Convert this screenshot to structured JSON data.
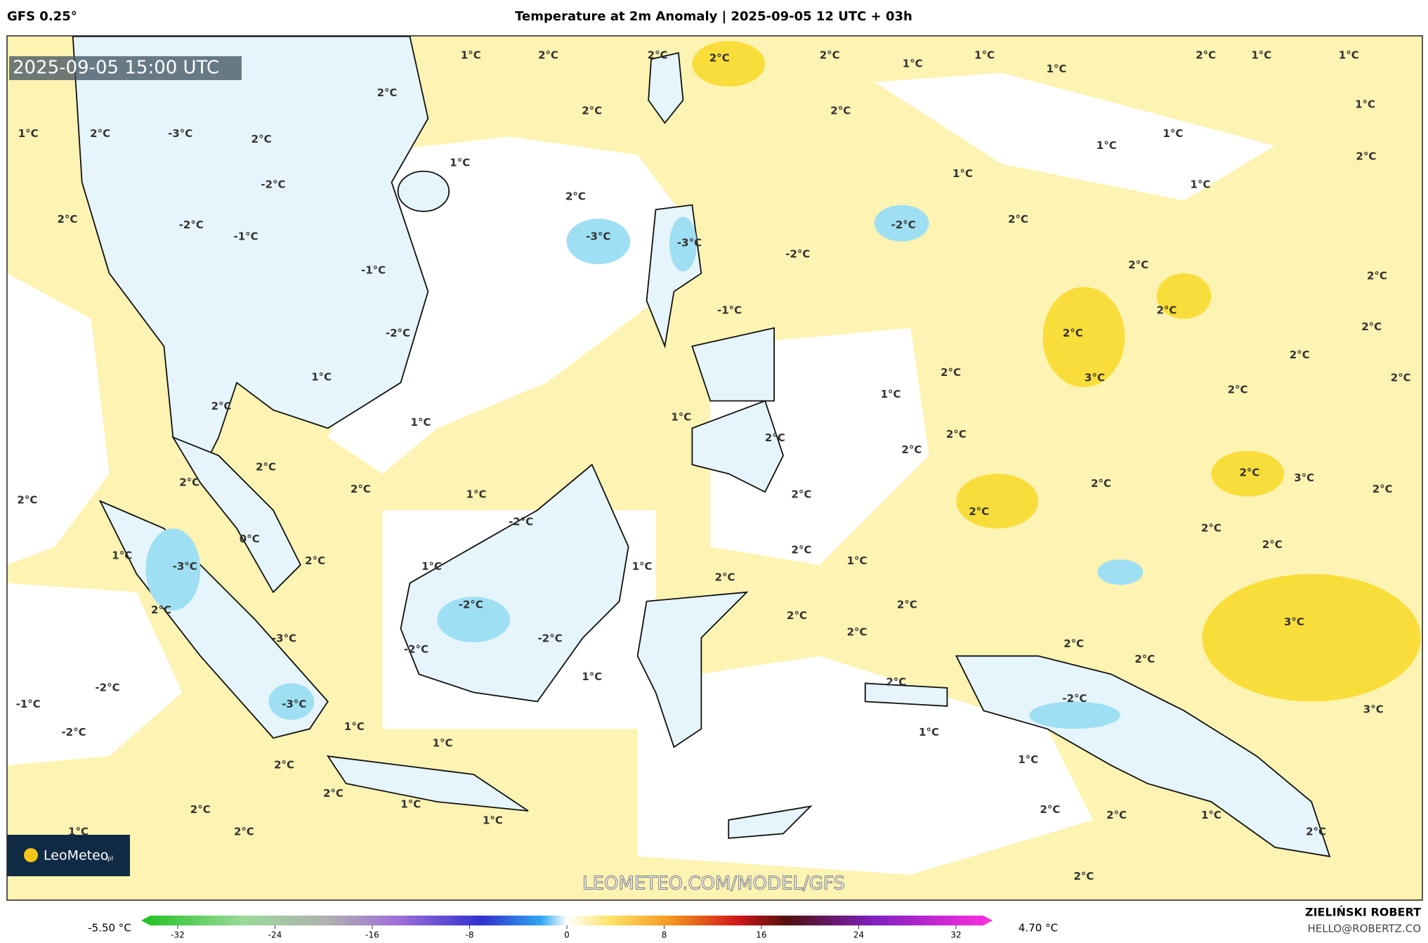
{
  "header": {
    "model": "GFS 0.25°",
    "title": "Temperature at 2m Anomaly | 2025-09-05 12 UTC + 03h"
  },
  "map": {
    "timestamp": "2025-09-05 15:00 UTC",
    "watermark": "LEOMETEO.COM/MODEL/GFS",
    "logo": {
      "name": "LeoMeteo",
      "suffix": ".pl"
    },
    "contour_labels": [
      "1°C",
      "2°C",
      "2°C",
      "2°C",
      "2°C",
      "1°C",
      "1°C",
      "1°C",
      "2°C",
      "1°C",
      "1°C",
      "2°C",
      "2°C",
      "2°C",
      "1°C",
      "1°C",
      "2°C",
      "-3°C",
      "2°C",
      "1°C",
      "1°C",
      "1°C",
      "2°C",
      "1°C",
      "1°C",
      "-2°C",
      "2°C",
      "2°C",
      "-2°C",
      "2°C",
      "-2°C",
      "-1°C",
      "-3°C",
      "-3°C",
      "-2°C",
      "2°C",
      "-1°C",
      "2°C",
      "2°C",
      "-1°C",
      "2°C",
      "2°C",
      "-2°C",
      "2°C",
      "1°C",
      "3°C",
      "2°C",
      "2°C",
      "1°C",
      "2°C",
      "2°C",
      "1°C",
      "1°C",
      "2°C",
      "2°C",
      "2°C",
      "2°C",
      "2°C",
      "2°C",
      "2°C",
      "3°C",
      "2°C",
      "2°C",
      "1°C",
      "2°C",
      "2°C",
      "-2°C",
      "2°C",
      "2°C",
      "0°C",
      "2°C",
      "1°C",
      "2°C",
      "-3°C",
      "2°C",
      "1°C",
      "1°C",
      "1°C",
      "2°C",
      "-2°C",
      "2°C",
      "2°C",
      "2°C",
      "3°C",
      "2°C",
      "-3°C",
      "-2°C",
      "2°C",
      "-2°C",
      "2°C",
      "1°C",
      "2°C",
      "-2°C",
      "-1°C",
      "-2°C",
      "-3°C",
      "3°C",
      "1°C",
      "-2°C",
      "1°C",
      "1°C",
      "1°C",
      "2°C",
      "2°C",
      "1°C",
      "2°C",
      "2°C",
      "1°C",
      "2°C",
      "1°C",
      "1°C",
      "2°C",
      "2°C",
      "2°C"
    ]
  },
  "colorbar": {
    "min_label": "-5.50 °C",
    "max_label": "4.70 °C",
    "lim": [
      -35,
      35
    ],
    "ticks": [
      -32,
      -24,
      -16,
      -8,
      0,
      8,
      16,
      24,
      32
    ]
  },
  "credits": {
    "author": "ZIELIŃSKI ROBERT",
    "contact": "HELLO@ROBERTZ.CO"
  }
}
